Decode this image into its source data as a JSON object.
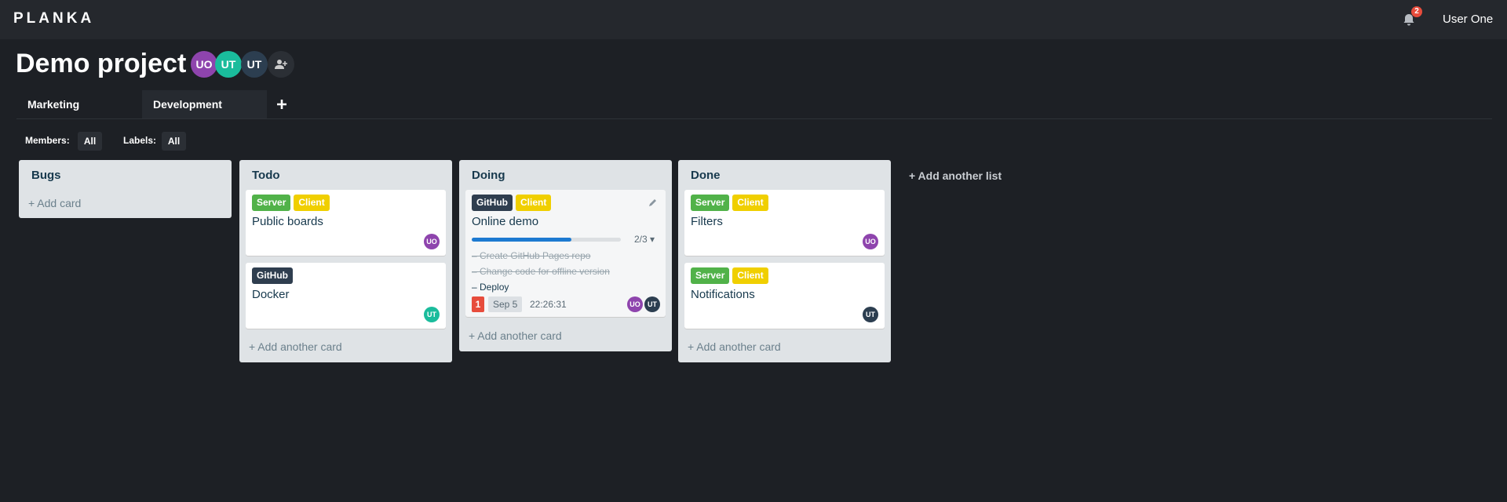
{
  "header": {
    "logo": "PLANKA",
    "notifications_count": "2",
    "user": "User One"
  },
  "project": {
    "title": "Demo project",
    "members": [
      {
        "initials": "UO",
        "color": "#8e44ad"
      },
      {
        "initials": "UT",
        "color": "#1abc9c"
      },
      {
        "initials": "UT",
        "color": "#2c3e50"
      }
    ],
    "add_member_icon": "user-plus-icon"
  },
  "boards": {
    "tabs": [
      {
        "label": "Marketing",
        "active": false
      },
      {
        "label": "Development",
        "active": true
      }
    ],
    "add_icon": "plus-icon"
  },
  "filters": {
    "members_label": "Members:",
    "members_value": "All",
    "labels_label": "Labels:",
    "labels_value": "All"
  },
  "label_colors": {
    "Server": "#51b249",
    "Client": "#f0cf00",
    "GitHub": "#2f3e4f"
  },
  "lists": [
    {
      "title": "Bugs",
      "add": "Add card"
    },
    {
      "title": "Todo",
      "add": "Add another card",
      "cards": [
        {
          "labels": [
            "Server",
            "Client"
          ],
          "title": "Public boards",
          "member": "UO"
        },
        {
          "labels": [
            "GitHub"
          ],
          "title": "Docker",
          "member": "UT"
        }
      ]
    },
    {
      "title": "Doing",
      "add": "Add another card",
      "cards": [
        {
          "labels": [
            "GitHub",
            "Client"
          ],
          "title": "Online demo",
          "progress": "2/3",
          "progress_fraction": 0.667,
          "tasks": [
            {
              "text": "Create GitHub Pages repo",
              "done": true
            },
            {
              "text": "Change code for offline version",
              "done": true
            },
            {
              "text": "Deploy",
              "done": false
            }
          ],
          "notification_count": "1",
          "due_date": "Sep 5",
          "timer": "22:26:31",
          "members": [
            "UO",
            "UT"
          ]
        }
      ]
    },
    {
      "title": "Done",
      "add": "Add another card",
      "cards": [
        {
          "labels": [
            "Server",
            "Client"
          ],
          "title": "Filters",
          "member": "UO"
        },
        {
          "labels": [
            "Server",
            "Client"
          ],
          "title": "Notifications",
          "member": "UT"
        }
      ]
    }
  ],
  "add_list": "Add another list"
}
